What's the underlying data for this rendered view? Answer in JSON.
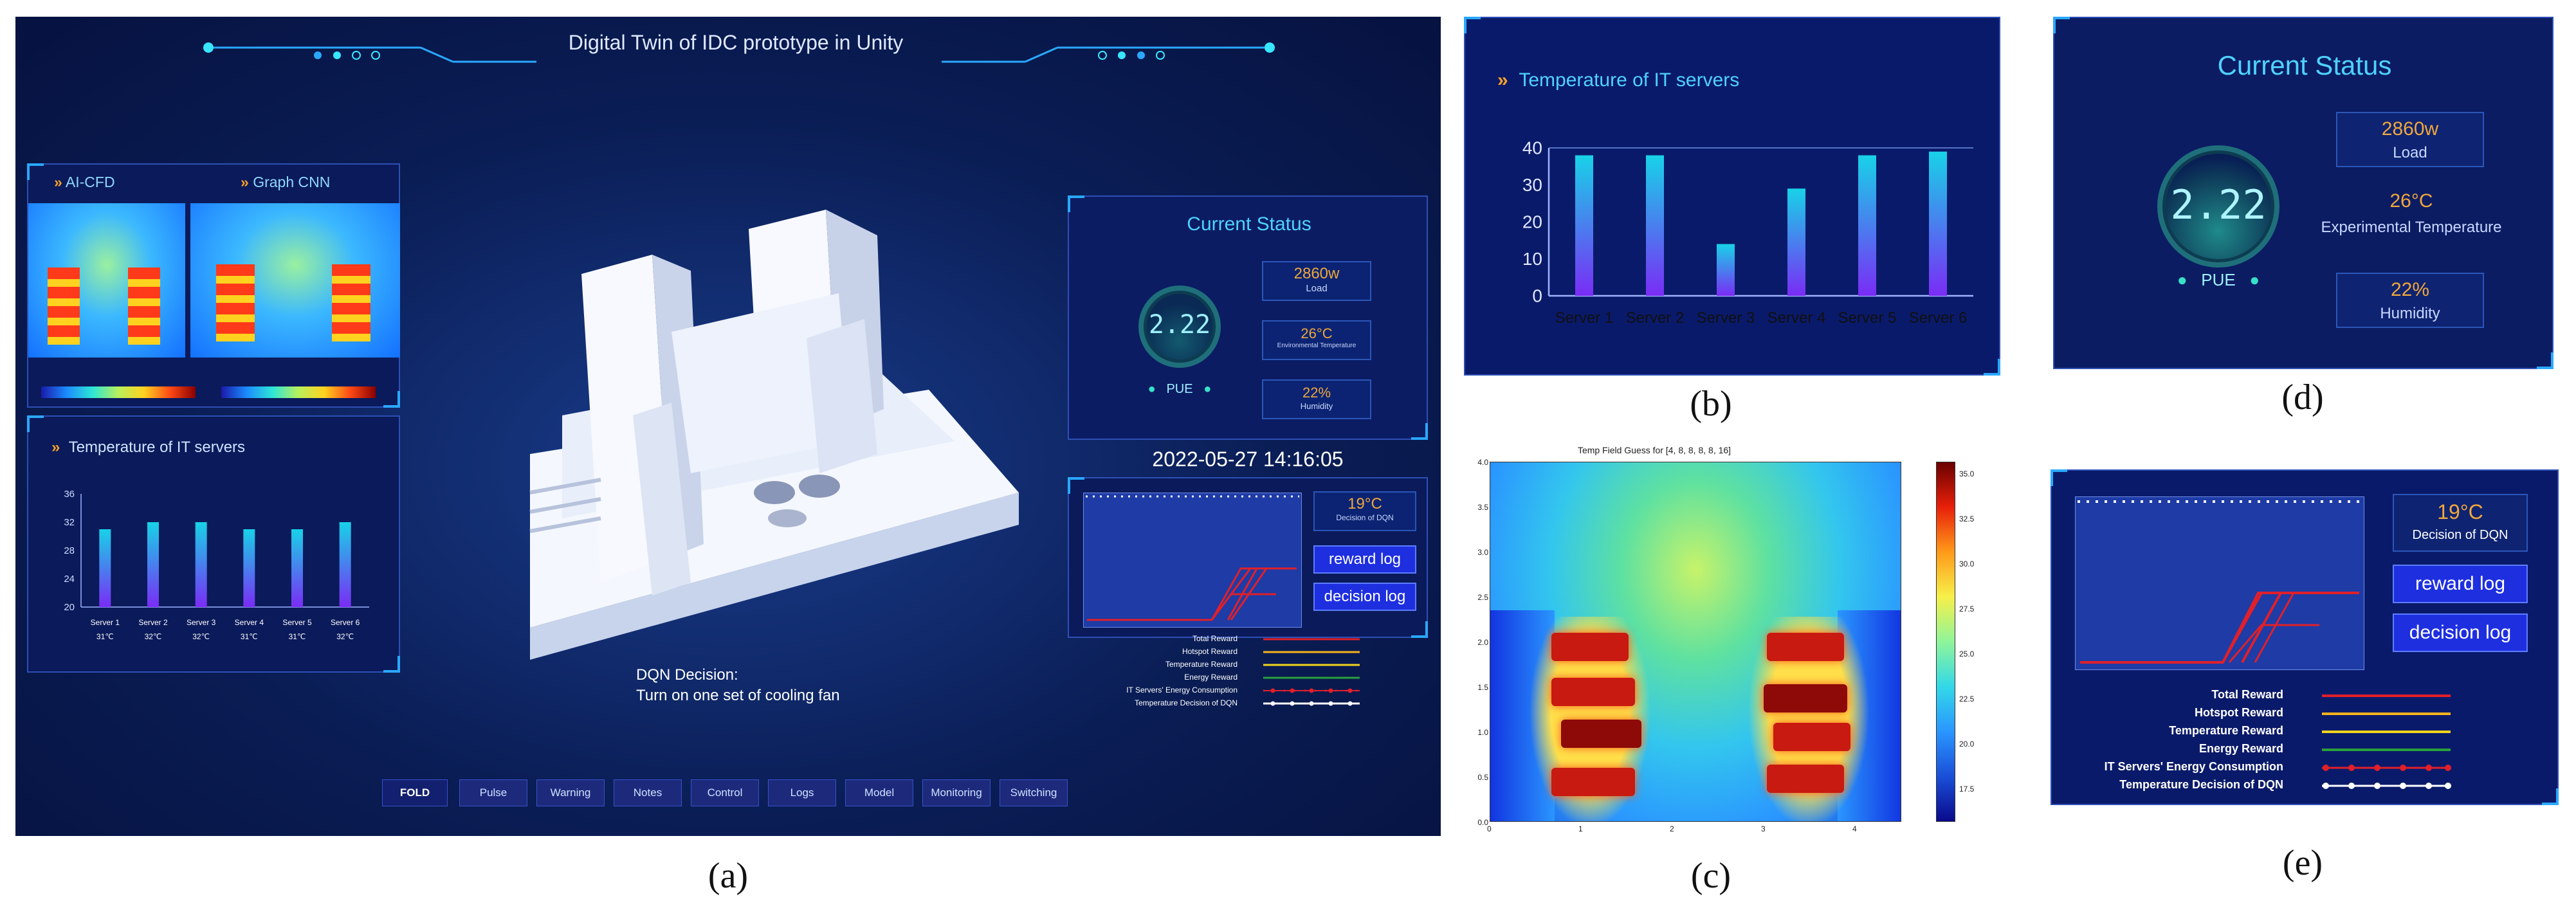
{
  "a": {
    "title": "Digital Twin of IDC prototype in Unity",
    "tabs": [
      "AI-CFD",
      "Graph CNN"
    ],
    "server_panel": {
      "title": "Temperature of IT servers",
      "yticks": [
        "36",
        "32",
        "28",
        "24",
        "20"
      ],
      "servers": [
        "Server 1",
        "Server 2",
        "Server 3",
        "Server 4",
        "Server 5",
        "Server 6"
      ],
      "temps": [
        "31℃",
        "32℃",
        "32℃",
        "31℃",
        "31℃",
        "32℃"
      ]
    },
    "status": {
      "title": "Current Status",
      "pue": "2.22",
      "pue_label": "PUE",
      "load": "2860w",
      "load_label": "Load",
      "temp": "26°C",
      "temp_label": "Environmental Temperature",
      "hum": "22%",
      "hum_label": "Humidity"
    },
    "datetime": "2022-05-27  14:16:05",
    "dqn": {
      "decision_value": "19°C",
      "decision_label": "Decision of DQN",
      "reward_btn": "reward log",
      "decision_btn": "decision log"
    },
    "legend": [
      "Total  Reward",
      "Hotspot  Reward",
      "Temperature  Reward",
      "Energy  Reward",
      "IT Servers'  Energy  Consumption",
      "Temperature  Decision  of  DQN"
    ],
    "decision_text_1": "DQN Decision:",
    "decision_text_2": "Turn on one set of cooling fan",
    "buttons": [
      "FOLD",
      "Pulse",
      "Warning",
      "Notes",
      "Control",
      "Logs",
      "Model",
      "Monitoring",
      "Switching"
    ]
  },
  "b": {
    "title": "Temperature of IT servers",
    "yticks": [
      "40",
      "30",
      "20",
      "10",
      "0"
    ],
    "servers": [
      "Server 1",
      "Server 2",
      "Server 3",
      "Server 4",
      "Server 5",
      "Server 6"
    ]
  },
  "c": {
    "title": "Temp Field Guess for [4, 8, 8, 8, 8, 16]",
    "xticks": [
      "0",
      "1",
      "2",
      "3",
      "4"
    ],
    "yticks": [
      "4.0",
      "3.5",
      "3.0",
      "2.5",
      "2.0",
      "1.5",
      "1.0",
      "0.5",
      "0.0"
    ],
    "cbar_ticks": [
      "35.0",
      "32.5",
      "30.0",
      "27.5",
      "25.0",
      "22.5",
      "20.0",
      "17.5"
    ]
  },
  "d": {
    "title": "Current Status",
    "pue": "2.22",
    "pue_label": "PUE",
    "load": "2860w",
    "load_label": "Load",
    "temp": "26°C",
    "temp_label": "Experimental Temperature",
    "hum": "22%",
    "hum_label": "Humidity"
  },
  "e": {
    "decision_value": "19°C",
    "decision_label": "Decision of DQN",
    "reward_btn": "reward log",
    "decision_btn": "decision log",
    "legend": [
      "Total Reward",
      "Hotspot Reward",
      "Temperature Reward",
      "Energy Reward",
      "IT Servers' Energy Consumption",
      "Temperature Decision of DQN"
    ]
  },
  "captions": [
    "(a)",
    "(b)",
    "(c)",
    "(d)",
    "(e)"
  ],
  "colors": {
    "total": "#e0202a",
    "hotspot": "#f6b21b",
    "temperature": "#f0d41c",
    "energy": "#2aa03a",
    "consumption": "#e0202a",
    "decision": "#ffffff"
  },
  "chart_data": [
    {
      "type": "bar",
      "title": "Temperature of IT servers",
      "categories": [
        "Server 1",
        "Server 2",
        "Server 3",
        "Server 4",
        "Server 5",
        "Server 6"
      ],
      "values": [
        31,
        32,
        32,
        31,
        31,
        32
      ],
      "ylim": [
        20,
        36
      ]
    },
    {
      "type": "bar",
      "title": "Temperature of IT servers",
      "categories": [
        "Server 1",
        "Server 2",
        "Server 3",
        "Server 4",
        "Server 5",
        "Server 6"
      ],
      "values": [
        38,
        38,
        14,
        29,
        38,
        39
      ],
      "ylim": [
        0,
        40
      ]
    }
  ]
}
